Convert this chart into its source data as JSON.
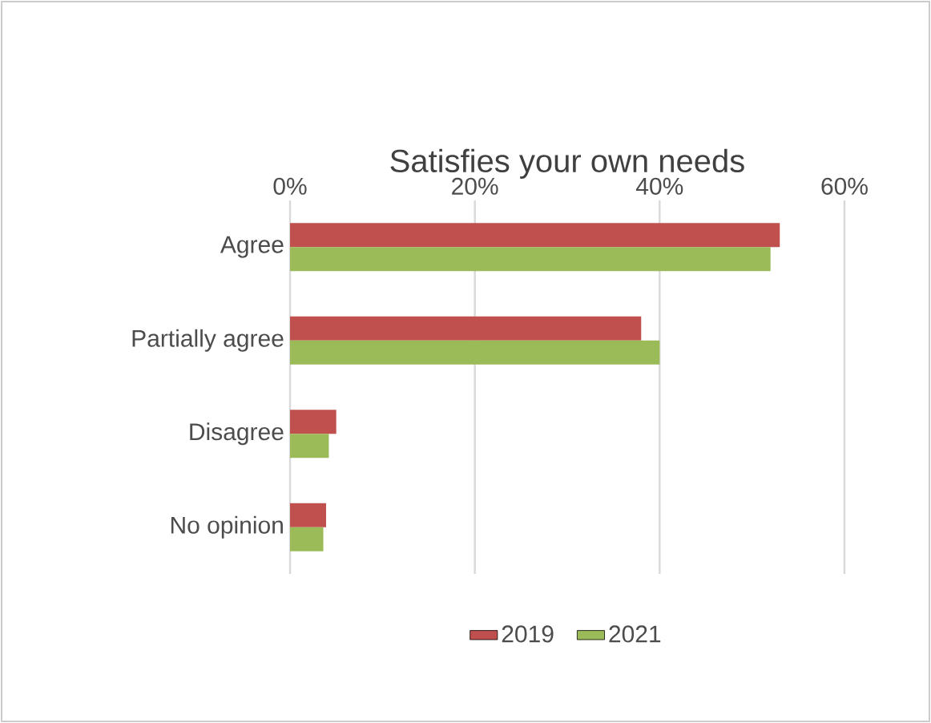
{
  "chart_data": {
    "type": "bar",
    "orientation": "horizontal",
    "title": "Satisfies your own needs",
    "categories": [
      "Agree",
      "Partially agree",
      "Disagree",
      "No opinion"
    ],
    "series": [
      {
        "name": "2019",
        "color": "#c0504d",
        "values": [
          53,
          38,
          5,
          3.9
        ]
      },
      {
        "name": "2021",
        "color": "#9bbb59",
        "values": [
          52,
          40,
          4.2,
          3.6
        ]
      }
    ],
    "xlim": [
      0,
      60
    ],
    "xticks": [
      {
        "value": 0,
        "label": "0%"
      },
      {
        "value": 20,
        "label": "20%"
      },
      {
        "value": 40,
        "label": "40%"
      },
      {
        "value": 60,
        "label": "60%"
      }
    ],
    "grid": "x",
    "legend": "bottom"
  }
}
